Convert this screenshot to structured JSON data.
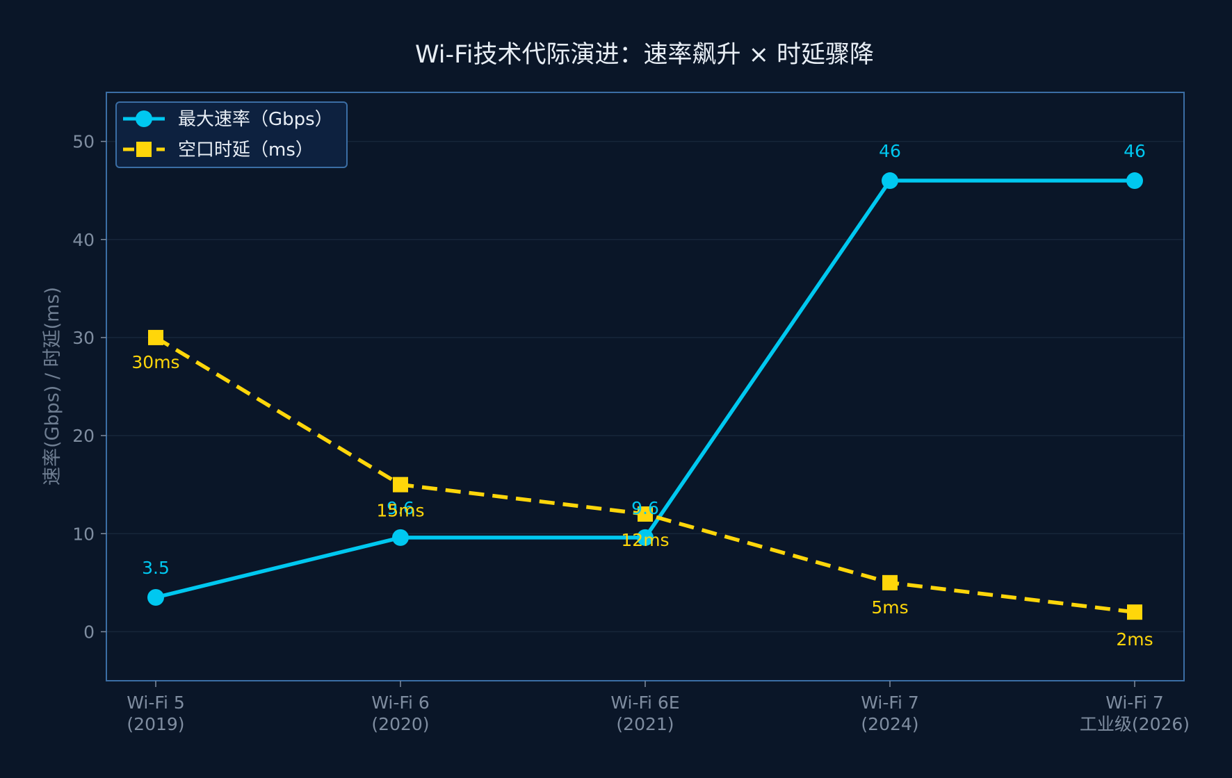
{
  "chart_data": {
    "type": "line",
    "title": "Wi-Fi技术代际演进：速率飙升 × 时延骤降",
    "ylabel": "速率(Gbps) / 时延(ms)",
    "xlabel": "",
    "categories": [
      [
        "Wi-Fi 5",
        "(2019)"
      ],
      [
        "Wi-Fi 6",
        "(2020)"
      ],
      [
        "Wi-Fi 6E",
        "(2021)"
      ],
      [
        "Wi-Fi 7",
        "(2024)"
      ],
      [
        "Wi-Fi 7",
        "工业级(2026)"
      ]
    ],
    "ylim": [
      -5,
      55
    ],
    "yticks": [
      0,
      10,
      20,
      30,
      40,
      50
    ],
    "grid": true,
    "legend_position": "top-left",
    "series": [
      {
        "name": "最大速率（Gbps）",
        "values": [
          3.5,
          9.6,
          9.6,
          46,
          46
        ],
        "labels": [
          "3.5",
          "9.6",
          "9.6",
          "46",
          "46"
        ],
        "color": "#00c8f0",
        "marker": "circle",
        "style": "solid"
      },
      {
        "name": "空口时延（ms）",
        "values": [
          30,
          15,
          12,
          5,
          2
        ],
        "labels": [
          "30ms",
          "15ms",
          "12ms",
          "5ms",
          "2ms"
        ],
        "color": "#ffd60a",
        "marker": "square",
        "style": "dashed"
      }
    ],
    "colors": {
      "background": "#0a1628",
      "axes_border": "#3b6ea5",
      "grid": "#17263a",
      "legend_bg": "#0d213f"
    }
  }
}
